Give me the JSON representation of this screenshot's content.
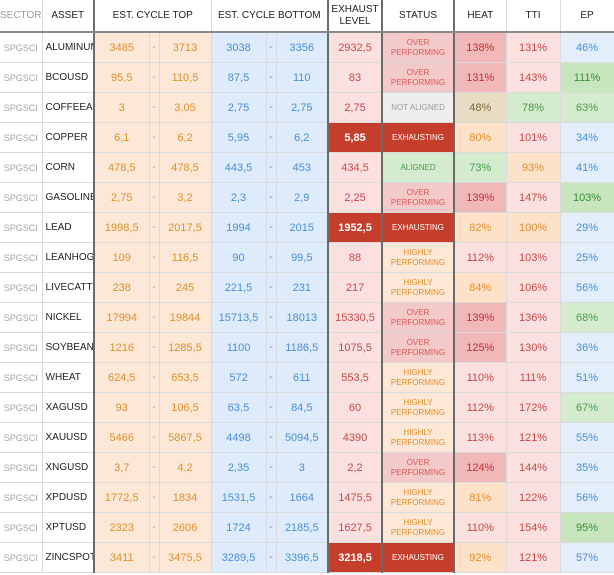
{
  "headers": {
    "sector": "SECTOR",
    "asset": "ASSET",
    "top": "EST. CYCLE TOP",
    "bottom": "EST. CYCLE BOTTOM",
    "exhaust": "EXHAUST LEVEL",
    "status": "STATUS",
    "heat": "HEAT",
    "tti": "TTI",
    "ep": "EP"
  },
  "dash": "-",
  "rows": [
    {
      "sector": "SPGSCI",
      "asset": "ALUMINUM",
      "top_lo": "3485",
      "top_hi": "3713",
      "bot_lo": "3038",
      "bot_hi": "3356",
      "exhaust": "2932,5",
      "exh_hl": false,
      "status": "OVER PERFORMING",
      "status_kind": "over",
      "heat": "138%",
      "heat_c": "c-red1",
      "tti": "131%",
      "tti_c": "c-red2",
      "ep": "46%",
      "ep_c": "c-blu1"
    },
    {
      "sector": "SPGSCI",
      "asset": "BCOUSD",
      "top_lo": "95,5",
      "top_hi": "110,5",
      "bot_lo": "87,5",
      "bot_hi": "110",
      "exhaust": "83",
      "exh_hl": false,
      "status": "OVER PERFORMING",
      "status_kind": "over",
      "heat": "131%",
      "heat_c": "c-red1",
      "tti": "143%",
      "tti_c": "c-red2",
      "ep": "111%",
      "ep_c": "c-grn2"
    },
    {
      "sector": "SPGSCI",
      "asset": "COFFEEARA",
      "top_lo": "3",
      "top_hi": "3,05",
      "bot_lo": "2,75",
      "bot_hi": "2,75",
      "exhaust": "2,75",
      "exh_hl": false,
      "status": "NOT ALIGNED",
      "status_kind": "nal",
      "heat": "48%",
      "heat_c": "c-tan",
      "tti": "78%",
      "tti_c": "c-grn1",
      "ep": "63%",
      "ep_c": "c-grn1"
    },
    {
      "sector": "SPGSCI",
      "asset": "COPPER",
      "top_lo": "6,1",
      "top_hi": "6,2",
      "bot_lo": "5,95",
      "bot_hi": "6,2",
      "exhaust": "5,85",
      "exh_hl": true,
      "status": "EXHAUSTING",
      "status_kind": "exhst",
      "heat": "80%",
      "heat_c": "c-org1",
      "tti": "101%",
      "tti_c": "c-red2",
      "ep": "34%",
      "ep_c": "c-blu1"
    },
    {
      "sector": "SPGSCI",
      "asset": "CORN",
      "top_lo": "478,5",
      "top_hi": "478,5",
      "bot_lo": "443,5",
      "bot_hi": "453",
      "exhaust": "434,5",
      "exh_hl": false,
      "status": "ALIGNED",
      "status_kind": "alg",
      "heat": "73%",
      "heat_c": "c-grn1",
      "tti": "93%",
      "tti_c": "c-org1",
      "ep": "41%",
      "ep_c": "c-blu1"
    },
    {
      "sector": "SPGSCI",
      "asset": "GASOLINE",
      "top_lo": "2,75",
      "top_hi": "3,2",
      "bot_lo": "2,3",
      "bot_hi": "2,9",
      "exhaust": "2,25",
      "exh_hl": false,
      "status": "OVER PERFORMING",
      "status_kind": "over",
      "heat": "139%",
      "heat_c": "c-red1",
      "tti": "147%",
      "tti_c": "c-red2",
      "ep": "103%",
      "ep_c": "c-grn2"
    },
    {
      "sector": "SPGSCI",
      "asset": "LEAD",
      "top_lo": "1998,5",
      "top_hi": "2017,5",
      "bot_lo": "1994",
      "bot_hi": "2015",
      "exhaust": "1952,5",
      "exh_hl": true,
      "status": "EXHAUSTING",
      "status_kind": "exhst",
      "heat": "82%",
      "heat_c": "c-org1",
      "tti": "100%",
      "tti_c": "c-org1",
      "ep": "29%",
      "ep_c": "c-blu1"
    },
    {
      "sector": "SPGSCI",
      "asset": "LEANHOGS",
      "top_lo": "109",
      "top_hi": "116,5",
      "bot_lo": "90",
      "bot_hi": "99,5",
      "exhaust": "88",
      "exh_hl": false,
      "status": "HIGHLY PERFORMING",
      "status_kind": "high",
      "heat": "112%",
      "heat_c": "c-red2",
      "tti": "103%",
      "tti_c": "c-red2",
      "ep": "25%",
      "ep_c": "c-blu1"
    },
    {
      "sector": "SPGSCI",
      "asset": "LIVECATTLE",
      "top_lo": "238",
      "top_hi": "245",
      "bot_lo": "221,5",
      "bot_hi": "231",
      "exhaust": "217",
      "exh_hl": false,
      "status": "HIGHLY PERFORMING",
      "status_kind": "high",
      "heat": "84%",
      "heat_c": "c-org1",
      "tti": "106%",
      "tti_c": "c-red2",
      "ep": "56%",
      "ep_c": "c-blu1"
    },
    {
      "sector": "SPGSCI",
      "asset": "NICKEL",
      "top_lo": "17994",
      "top_hi": "19844",
      "bot_lo": "15713,5",
      "bot_hi": "18013",
      "exhaust": "15330,5",
      "exh_hl": false,
      "status": "OVER PERFORMING",
      "status_kind": "over",
      "heat": "139%",
      "heat_c": "c-red1",
      "tti": "136%",
      "tti_c": "c-red2",
      "ep": "68%",
      "ep_c": "c-grn1"
    },
    {
      "sector": "SPGSCI",
      "asset": "SOYBEANS",
      "top_lo": "1216",
      "top_hi": "1285,5",
      "bot_lo": "1100",
      "bot_hi": "1186,5",
      "exhaust": "1075,5",
      "exh_hl": false,
      "status": "OVER PERFORMING",
      "status_kind": "over",
      "heat": "125%",
      "heat_c": "c-red1",
      "tti": "130%",
      "tti_c": "c-red2",
      "ep": "36%",
      "ep_c": "c-blu1"
    },
    {
      "sector": "SPGSCI",
      "asset": "WHEAT",
      "top_lo": "624,5",
      "top_hi": "653,5",
      "bot_lo": "572",
      "bot_hi": "611",
      "exhaust": "553,5",
      "exh_hl": false,
      "status": "HIGHLY PERFORMING",
      "status_kind": "high",
      "heat": "110%",
      "heat_c": "c-red2",
      "tti": "111%",
      "tti_c": "c-red2",
      "ep": "51%",
      "ep_c": "c-blu1"
    },
    {
      "sector": "SPGSCI",
      "asset": "XAGUSD",
      "top_lo": "93",
      "top_hi": "106,5",
      "bot_lo": "63,5",
      "bot_hi": "84,5",
      "exhaust": "60",
      "exh_hl": false,
      "status": "HIGHLY PERFORMING",
      "status_kind": "high",
      "heat": "112%",
      "heat_c": "c-red2",
      "tti": "172%",
      "tti_c": "c-red2",
      "ep": "67%",
      "ep_c": "c-grn1"
    },
    {
      "sector": "SPGSCI",
      "asset": "XAUUSD",
      "top_lo": "5466",
      "top_hi": "5867,5",
      "bot_lo": "4498",
      "bot_hi": "5094,5",
      "exhaust": "4390",
      "exh_hl": false,
      "status": "HIGHLY PERFORMING",
      "status_kind": "high",
      "heat": "113%",
      "heat_c": "c-red2",
      "tti": "121%",
      "tti_c": "c-red2",
      "ep": "55%",
      "ep_c": "c-blu1"
    },
    {
      "sector": "SPGSCI",
      "asset": "XNGUSD",
      "top_lo": "3,7",
      "top_hi": "4,2",
      "bot_lo": "2,35",
      "bot_hi": "3",
      "exhaust": "2,2",
      "exh_hl": false,
      "status": "OVER PERFORMING",
      "status_kind": "over",
      "heat": "124%",
      "heat_c": "c-red1",
      "tti": "144%",
      "tti_c": "c-red2",
      "ep": "35%",
      "ep_c": "c-blu1"
    },
    {
      "sector": "SPGSCI",
      "asset": "XPDUSD",
      "top_lo": "1772,5",
      "top_hi": "1834",
      "bot_lo": "1531,5",
      "bot_hi": "1664",
      "exhaust": "1475,5",
      "exh_hl": false,
      "status": "HIGHLY PERFORMING",
      "status_kind": "high",
      "heat": "81%",
      "heat_c": "c-org1",
      "tti": "122%",
      "tti_c": "c-red2",
      "ep": "56%",
      "ep_c": "c-blu1"
    },
    {
      "sector": "SPGSCI",
      "asset": "XPTUSD",
      "top_lo": "2323",
      "top_hi": "2606",
      "bot_lo": "1724",
      "bot_hi": "2185,5",
      "exhaust": "1627,5",
      "exh_hl": false,
      "status": "HIGHLY PERFORMING",
      "status_kind": "high",
      "heat": "110%",
      "heat_c": "c-red2",
      "tti": "154%",
      "tti_c": "c-red2",
      "ep": "95%",
      "ep_c": "c-grn2"
    },
    {
      "sector": "SPGSCI",
      "asset": "ZINCSPOT",
      "top_lo": "3411",
      "top_hi": "3475,5",
      "bot_lo": "3289,5",
      "bot_hi": "3396,5",
      "exhaust": "3218,5",
      "exh_hl": true,
      "status": "EXHAUSTING",
      "status_kind": "exhst",
      "heat": "92%",
      "heat_c": "c-org1",
      "tti": "121%",
      "tti_c": "c-red2",
      "ep": "57%",
      "ep_c": "c-blu1"
    }
  ]
}
